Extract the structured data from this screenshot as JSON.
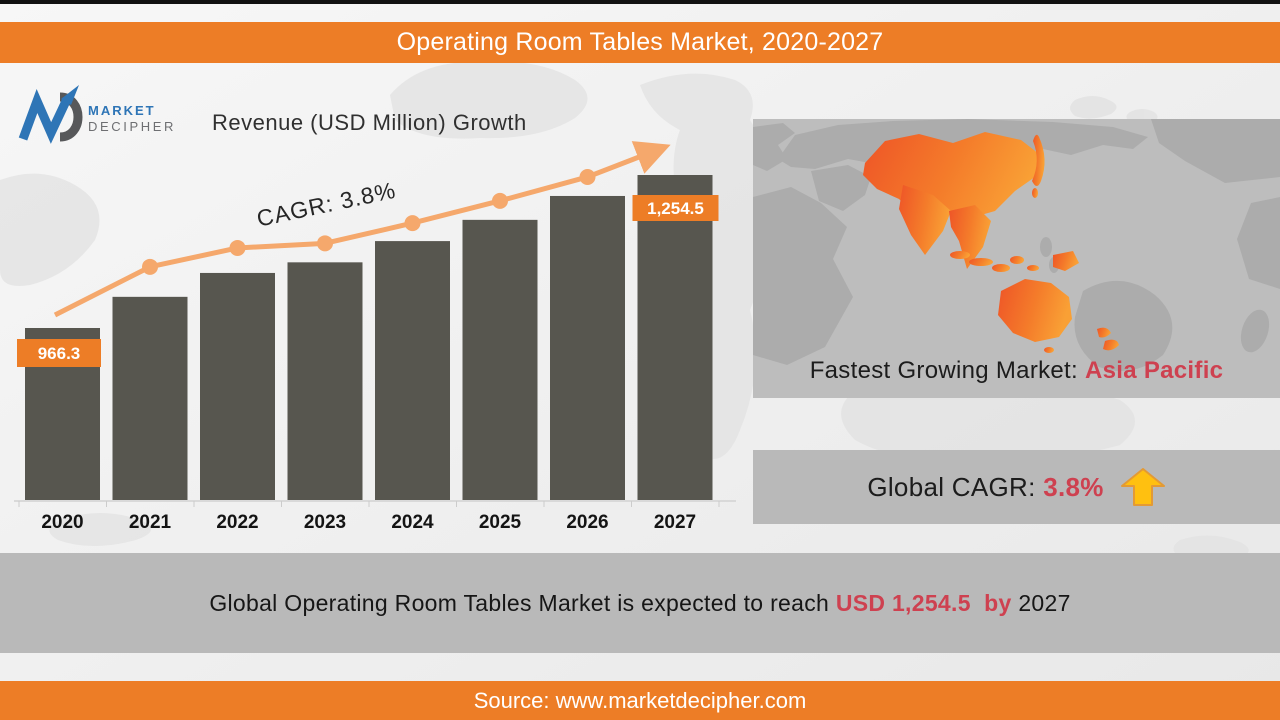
{
  "title_bar": {
    "title": "Operating Room Tables Market, 2020-2027",
    "background": "#ED7D26"
  },
  "logo": {
    "monogram": "MD",
    "word_top": "MARKET",
    "word_bottom": "DECIPHER",
    "blue": "#2E75B6",
    "gray": "#58595B"
  },
  "chart_heading": "Revenue (USD Million) Growth",
  "chart_data": {
    "type": "bar",
    "title": "Revenue (USD Million) Growth",
    "categories": [
      "2020",
      "2021",
      "2022",
      "2023",
      "2024",
      "2025",
      "2026",
      "2027"
    ],
    "values": [
      966.3,
      1025,
      1070,
      1090,
      1130,
      1170,
      1215,
      1254.5
    ],
    "estimated_categories": [
      "2021",
      "2022",
      "2023",
      "2024",
      "2025",
      "2026"
    ],
    "data_labels": {
      "2020": "966.3",
      "2027": "1,254.5"
    },
    "trend_line": {
      "label": "CAGR: 3.8%",
      "has_arrowhead": true,
      "markers_on": [
        "2021",
        "2022",
        "2023",
        "2024",
        "2025",
        "2026"
      ]
    },
    "bar_color": "#57564F",
    "line_color": "#F5A86C",
    "label_box_color": "#ED7D26",
    "label_text_color": "#FFFFFF",
    "year_label_color": "#141414",
    "annotation_color": "#262626",
    "axis": {
      "value_axis_visible": false,
      "gridlines": false,
      "baseline_truncated": true,
      "legend": "none"
    }
  },
  "map_panel": {
    "caption_prefix": "Fastest Growing Market: ",
    "caption_highlight": "Asia Pacific",
    "highlight_color": "#CE4150",
    "background": "#BDBDBD",
    "map_highlight_region": "Asia Pacific",
    "map_highlight_colors": [
      "#EF5B2C",
      "#F9A035"
    ]
  },
  "cagr_banner": {
    "prefix": "Global CAGR: ",
    "value": "3.8%",
    "value_color": "#CE4150",
    "background": "#B9B9B9",
    "arrow_icon": "up-block-arrow",
    "arrow_fill": "#FFC010",
    "arrow_stroke": "#E39A35"
  },
  "summary_banner": {
    "prefix": "Global Operating Room Tables Market is expected to reach ",
    "highlight": "USD 1,254.5  by ",
    "suffix": "2027",
    "highlight_color": "#CE4150",
    "background": "#B9B9B9"
  },
  "footer": {
    "source": "Source: www.marketdecipher.com",
    "background": "#ED7D26"
  }
}
